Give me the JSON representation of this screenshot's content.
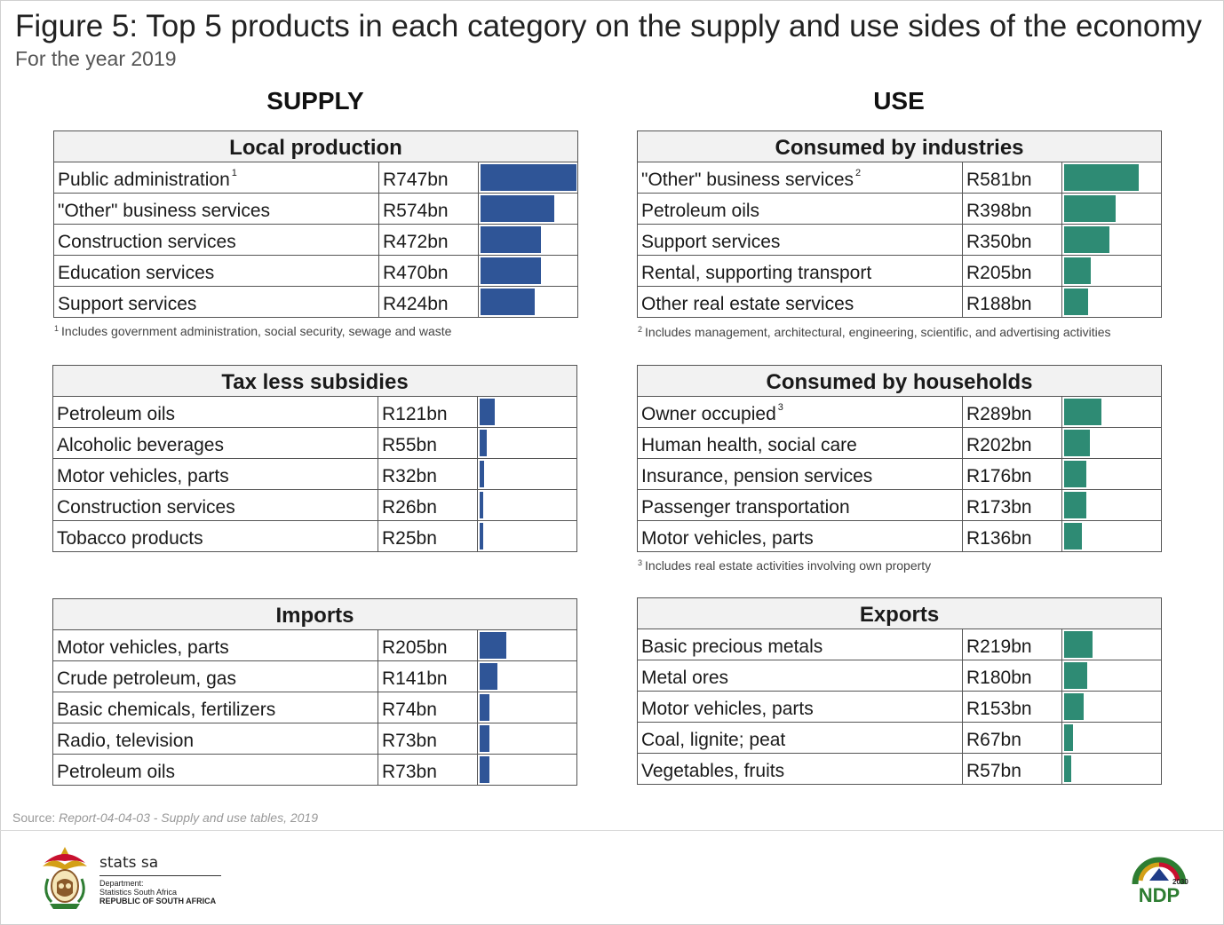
{
  "title": "Figure 5: Top 5 products in each category on the supply and use sides of the economy",
  "subtitle": "For the year 2019",
  "supply_heading": "SUPPLY",
  "use_heading": "USE",
  "colors": {
    "supply_bar": "#2f5597",
    "use_bar": "#2e8b74",
    "header_bg": "#f2f2f2"
  },
  "chart_data": [
    {
      "type": "bar",
      "title": "Local production",
      "side": "supply",
      "categories": [
        "Public administration",
        "\"Other\" business services",
        "Construction services",
        "Education services",
        "Support services"
      ],
      "values": [
        747,
        574,
        472,
        470,
        424
      ],
      "labels": [
        "R747bn",
        "R574bn",
        "R472bn",
        "R470bn",
        "R424bn"
      ],
      "unit": "R bn",
      "footnote_marks": [
        "1",
        "",
        "",
        "",
        ""
      ],
      "footnote": {
        "mark": "1",
        "text": "Includes government administration, social security, sewage and waste"
      }
    },
    {
      "type": "bar",
      "title": "Tax less subsidies",
      "side": "supply",
      "categories": [
        "Petroleum oils",
        "Alcoholic beverages",
        "Motor vehicles, parts",
        "Construction services",
        "Tobacco products"
      ],
      "values": [
        121,
        55,
        32,
        26,
        25
      ],
      "labels": [
        "R121bn",
        "R55bn",
        "R32bn",
        "R26bn",
        "R25bn"
      ],
      "unit": "R bn",
      "footnote_marks": [
        "",
        "",
        "",
        "",
        ""
      ]
    },
    {
      "type": "bar",
      "title": "Imports",
      "side": "supply",
      "categories": [
        "Motor vehicles, parts",
        "Crude petroleum, gas",
        "Basic chemicals, fertilizers",
        "Radio, television",
        "Petroleum oils"
      ],
      "values": [
        205,
        141,
        74,
        73,
        73
      ],
      "labels": [
        "R205bn",
        "R141bn",
        "R74bn",
        "R73bn",
        "R73bn"
      ],
      "unit": "R bn",
      "footnote_marks": [
        "",
        "",
        "",
        "",
        ""
      ]
    },
    {
      "type": "bar",
      "title": "Consumed by industries",
      "side": "use",
      "categories": [
        "\"Other\" business services",
        "Petroleum oils",
        "Support services",
        "Rental, supporting transport",
        "Other real estate services"
      ],
      "values": [
        581,
        398,
        350,
        205,
        188
      ],
      "labels": [
        "R581bn",
        "R398bn",
        "R350bn",
        "R205bn",
        "R188bn"
      ],
      "unit": "R bn",
      "footnote_marks": [
        "2",
        "",
        "",
        "",
        ""
      ],
      "footnote": {
        "mark": "2",
        "text": "Includes management, architectural, engineering, scientific, and advertising activities"
      }
    },
    {
      "type": "bar",
      "title": "Consumed by households",
      "side": "use",
      "categories": [
        "Owner occupied",
        "Human health, social care",
        "Insurance, pension services",
        "Passenger transportation",
        "Motor vehicles, parts"
      ],
      "values": [
        289,
        202,
        176,
        173,
        136
      ],
      "labels": [
        "R289bn",
        "R202bn",
        "R176bn",
        "R173bn",
        "R136bn"
      ],
      "unit": "R bn",
      "footnote_marks": [
        "3",
        "",
        "",
        "",
        ""
      ],
      "footnote": {
        "mark": "3",
        "text": "Includes real estate activities involving own property"
      }
    },
    {
      "type": "bar",
      "title": "Exports",
      "side": "use",
      "categories": [
        "Basic precious metals",
        "Metal ores",
        "Motor vehicles, parts",
        "Coal, lignite; peat",
        "Vegetables, fruits"
      ],
      "values": [
        219,
        180,
        153,
        67,
        57
      ],
      "labels": [
        "R219bn",
        "R180bn",
        "R153bn",
        "R67bn",
        "R57bn"
      ],
      "unit": "R bn",
      "footnote_marks": [
        "",
        "",
        "",
        "",
        ""
      ]
    }
  ],
  "source": {
    "prefix": "Source: ",
    "title": "Report-04-04-03 - Supply and use tables, 2019"
  },
  "footer": {
    "brand_name": "stats sa",
    "department": "Department:",
    "organisation": "Statistics South Africa",
    "country": "REPUBLIC OF SOUTH AFRICA",
    "ndp_year": "2030",
    "ndp_text": "NDP"
  }
}
